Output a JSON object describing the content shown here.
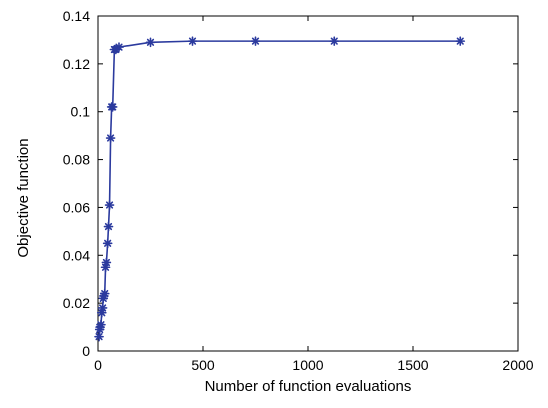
{
  "chart_data": {
    "type": "line",
    "title": "",
    "xlabel": "Number of function evaluations",
    "ylabel": "Objective function",
    "xlim": [
      0,
      2000
    ],
    "ylim": [
      0,
      0.14
    ],
    "x_ticks": [
      0,
      500,
      1000,
      1500,
      2000
    ],
    "y_ticks": [
      0,
      0.02,
      0.04,
      0.06,
      0.08,
      0.1,
      0.12,
      0.14
    ],
    "x_tick_labels": [
      "0",
      "500",
      "1000",
      "1500",
      "2000"
    ],
    "y_tick_labels": [
      "0",
      "0.02",
      "0.04",
      "0.06",
      "0.08",
      "0.1",
      "0.12",
      "0.14"
    ],
    "grid": false,
    "legend": "none",
    "colors": {
      "series": "#2b3a9e",
      "axes": "#000000",
      "background": "#ffffff"
    },
    "marker": "asterisk",
    "series": [
      {
        "x": [
          5,
          8,
          10,
          14,
          18,
          22,
          25,
          28,
          32,
          36,
          40,
          46,
          50,
          55,
          60,
          65,
          70,
          78,
          85,
          100,
          250,
          450,
          750,
          1125,
          1725
        ],
        "y": [
          0.006,
          0.009,
          0.01,
          0.011,
          0.016,
          0.018,
          0.022,
          0.023,
          0.024,
          0.035,
          0.037,
          0.045,
          0.052,
          0.061,
          0.089,
          0.102,
          0.102,
          0.126,
          0.126,
          0.127,
          0.129,
          0.1295,
          0.1295,
          0.1295,
          0.1295
        ]
      }
    ]
  }
}
